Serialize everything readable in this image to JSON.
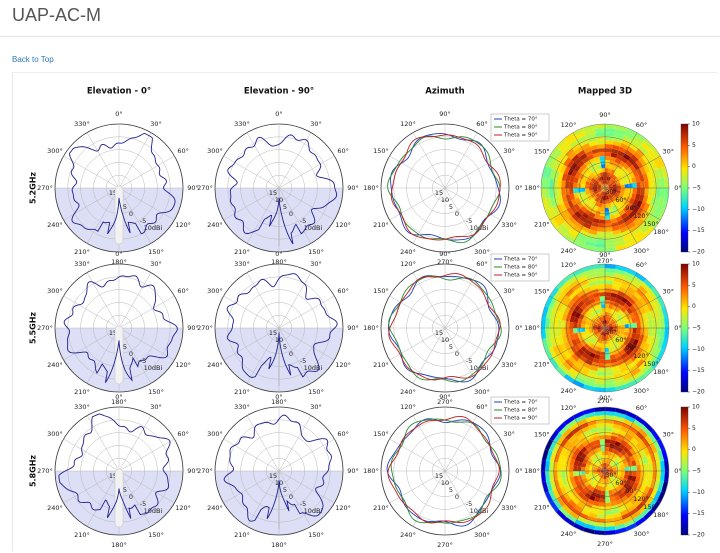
{
  "page": {
    "title": "UAP-AC-M",
    "back_link": "Back to Top"
  },
  "colors": {
    "elevation_trace": "#1f1f8f",
    "lower_half_fill": "#dcdff5",
    "theta70": "#1f3fbf",
    "theta80": "#2a8a2a",
    "theta90": "#c02020",
    "grid": "#b8b8b8"
  },
  "chart_data": [
    {
      "type": "polar-grid",
      "column_titles": [
        "Elevation - 0°",
        "Elevation - 90°",
        "Azimuth",
        "Mapped 3D"
      ],
      "row_labels": [
        "5.2GHz",
        "5.5GHz",
        "5.8GHz"
      ],
      "radial_ticks": [
        "15",
        "10",
        "5",
        "0",
        "-5",
        "10dBi"
      ],
      "elevation_angle_ticks": [
        "0°",
        "30°",
        "60°",
        "90°",
        "120°",
        "150°",
        "180°",
        "210°",
        "240°",
        "270°",
        "300°",
        "330°"
      ],
      "azimuth_angle_ticks": [
        "90°",
        "60°",
        "30°",
        "0°",
        "330°",
        "300°",
        "270°",
        "240°",
        "210°",
        "180°",
        "150°",
        "120°"
      ],
      "azimuth_legend": [
        "Theta = 70°",
        "Theta = 80°",
        "Theta = 90°"
      ],
      "mapped3d_angle_ticks": [
        "90°",
        "60°",
        "30°",
        "0°",
        "300°",
        "270°",
        "240°",
        "210°",
        "180°",
        "150°",
        "120°"
      ],
      "mapped3d_theta_ticks": [
        "30°",
        "60°",
        "90°",
        "120°",
        "150°",
        "180°"
      ],
      "colorbar_ticks": [
        10,
        5,
        0,
        -5,
        -10,
        -15,
        -20
      ],
      "colorbar_range": [
        -20,
        10
      ],
      "series_description": "Gain in dBi vs angle; lobe magnitude approx 5 to 10 dBi"
    }
  ]
}
